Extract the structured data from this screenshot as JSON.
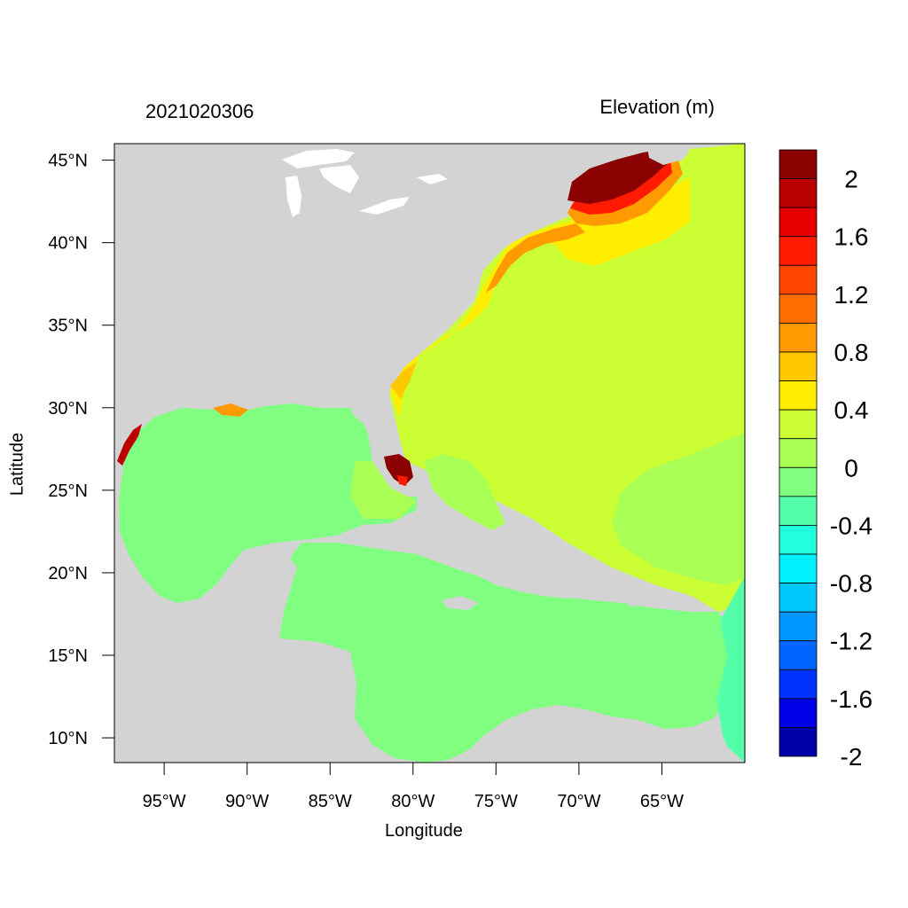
{
  "header": {
    "date_label": "2021020306",
    "variable_label": "Elevation (m)"
  },
  "axes": {
    "xlabel": "Longitude",
    "ylabel": "Latitude",
    "lon_range": [
      -98,
      -60
    ],
    "lat_range": [
      8.5,
      46
    ],
    "x_ticks": [
      {
        "value": -95,
        "label": "95°W"
      },
      {
        "value": -90,
        "label": "90°W"
      },
      {
        "value": -85,
        "label": "85°W"
      },
      {
        "value": -80,
        "label": "80°W"
      },
      {
        "value": -75,
        "label": "75°W"
      },
      {
        "value": -70,
        "label": "70°W"
      },
      {
        "value": -65,
        "label": "65°W"
      }
    ],
    "y_ticks": [
      {
        "value": 45,
        "label": "45°N"
      },
      {
        "value": 40,
        "label": "40°N"
      },
      {
        "value": 35,
        "label": "35°N"
      },
      {
        "value": 30,
        "label": "30°N"
      },
      {
        "value": 25,
        "label": "25°N"
      },
      {
        "value": 20,
        "label": "20°N"
      },
      {
        "value": 15,
        "label": "15°N"
      },
      {
        "value": 10,
        "label": "10°N"
      }
    ]
  },
  "colorbar": {
    "colors_top_to_bottom": [
      "#8b0000",
      "#bb0000",
      "#e60000",
      "#ff1a00",
      "#ff4500",
      "#ff6e00",
      "#ff9b00",
      "#ffc800",
      "#ffee00",
      "#ccff33",
      "#aaff55",
      "#80ff80",
      "#55ffaa",
      "#22ffdd",
      "#00f0ff",
      "#00c8ff",
      "#0096ff",
      "#0066ff",
      "#0033ff",
      "#0000e6",
      "#0000aa"
    ],
    "labels": [
      "2",
      "1.6",
      "1.2",
      "0.8",
      "0.4",
      "0",
      "-0.4",
      "-0.8",
      "-1.2",
      "-1.6",
      "-2"
    ]
  },
  "colors": {
    "land": "#d3d3d3",
    "gulf_caribbean": "#80ff80",
    "atlantic": "#ccff33",
    "atlantic_south": "#aaff55",
    "surge_high": "#8b0000",
    "coastal_warm": "#ffee00"
  }
}
